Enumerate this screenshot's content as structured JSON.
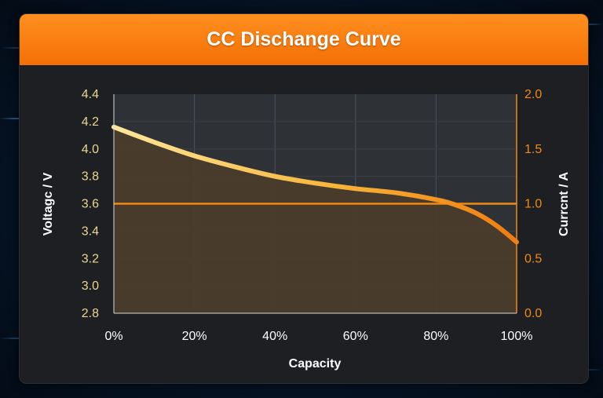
{
  "title": "CC Dischange Curve",
  "colors": {
    "header": "#f57a0e",
    "panel": "#1d1f22",
    "voltage_curve": "#f7b43a",
    "current_line": "#f08a13",
    "left_axis_text": "#e8d890",
    "right_axis_text": "#f08a13"
  },
  "chart_data": {
    "type": "line",
    "title": "CC Dischange Curve",
    "xlabel": "Capacity",
    "ylabel": "Voltagc / V",
    "y2label": "Currcnt / A",
    "x_ticks": [
      "0%",
      "20%",
      "40%",
      "60%",
      "80%",
      "100%"
    ],
    "y_ticks": [
      "2.8",
      "3.0",
      "3.2",
      "3.4",
      "3.6",
      "3.8",
      "4.0",
      "4.2",
      "4.4"
    ],
    "y2_ticks": [
      "0.0",
      "0.5",
      "1.0",
      "1.5",
      "2.0"
    ],
    "xlim": [
      0,
      100
    ],
    "ylim": [
      2.8,
      4.4
    ],
    "y2lim": [
      0,
      2.0
    ],
    "grid": true,
    "series": [
      {
        "axis": "left",
        "x": [
          0,
          10,
          20,
          30,
          40,
          50,
          60,
          70,
          80,
          85,
          90,
          95,
          100
        ],
        "values": [
          4.16,
          4.05,
          3.95,
          3.87,
          3.8,
          3.75,
          3.71,
          3.68,
          3.63,
          3.59,
          3.53,
          3.44,
          3.32
        ]
      },
      {
        "axis": "right",
        "x": [
          0,
          100
        ],
        "values": [
          1.0,
          1.0
        ]
      }
    ]
  }
}
